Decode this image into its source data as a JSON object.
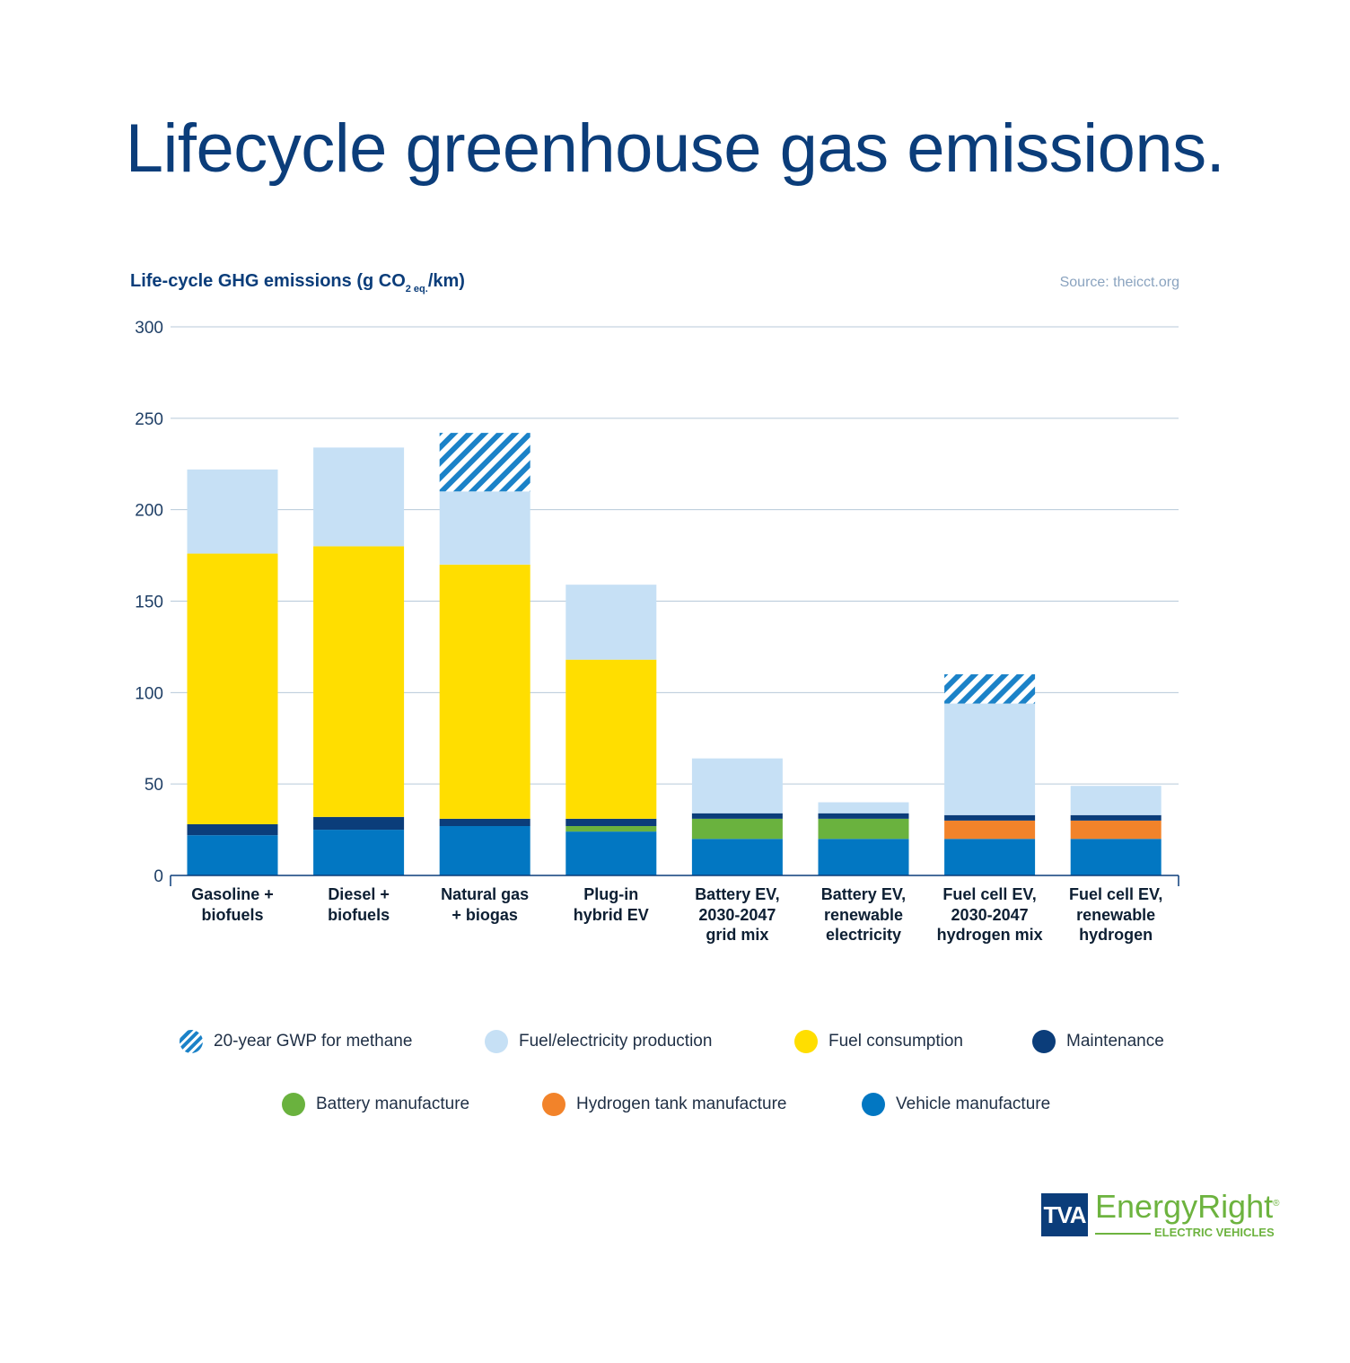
{
  "title": "Lifecycle greenhouse gas emissions.",
  "source": "Source: theicct.org",
  "ylabel": {
    "main": "Life-cycle GHG emissions (g CO",
    "sub": "2 eq.",
    "end": "/km)"
  },
  "colors": {
    "title": "#0b3d7a",
    "gwp_methane": "#1b82c8",
    "fuel_production": "#c6e0f5",
    "fuel_consumption": "#ffde00",
    "maintenance": "#0b3d7a",
    "battery_manufacture": "#6ab23e",
    "hydrogen_tank_manufacture": "#f2832a",
    "vehicle_manufacture": "#0277c2",
    "gridline": "#b7c9d9",
    "axis": "#0b3d7a"
  },
  "legend": [
    {
      "label": "20-year GWP for methane",
      "key": "gwp_methane",
      "pattern": "hatched"
    },
    {
      "label": "Fuel/electricity production",
      "key": "fuel_production"
    },
    {
      "label": "Fuel consumption",
      "key": "fuel_consumption"
    },
    {
      "label": "Maintenance",
      "key": "maintenance"
    },
    {
      "label": "Battery manufacture",
      "key": "battery_manufacture"
    },
    {
      "label": "Hydrogen tank manufacture",
      "key": "hydrogen_tank_manufacture"
    },
    {
      "label": "Vehicle manufacture",
      "key": "vehicle_manufacture"
    }
  ],
  "logo": {
    "tva": "TVA",
    "brand": "EnergyRight",
    "reg": "®",
    "sub": "ELECTRIC VEHICLES"
  },
  "chart_data": {
    "type": "bar",
    "stacked": true,
    "ylim": [
      0,
      300
    ],
    "yticks": [
      0,
      50,
      100,
      150,
      200,
      250,
      300
    ],
    "grid": true,
    "legend_position": "bottom",
    "categories": [
      [
        "Gasoline +",
        "biofuels"
      ],
      [
        "Diesel +",
        "biofuels"
      ],
      [
        "Natural gas",
        "+ biogas"
      ],
      [
        "Plug-in",
        "hybrid EV"
      ],
      [
        "Battery EV,",
        "2030-2047",
        "grid mix"
      ],
      [
        "Battery EV,",
        "renewable",
        "electricity"
      ],
      [
        "Fuel cell EV,",
        "2030-2047",
        "hydrogen mix"
      ],
      [
        "Fuel cell EV,",
        "renewable",
        "hydrogen"
      ]
    ],
    "series": [
      {
        "name": "Vehicle manufacture",
        "key": "vehicle_manufacture",
        "values": [
          22,
          25,
          27,
          24,
          20,
          20,
          20,
          20
        ]
      },
      {
        "name": "Battery manufacture",
        "key": "battery_manufacture",
        "values": [
          0,
          0,
          0,
          3,
          11,
          11,
          0,
          0
        ]
      },
      {
        "name": "Hydrogen tank manufacture",
        "key": "hydrogen_tank_manufacture",
        "values": [
          0,
          0,
          0,
          0,
          0,
          0,
          10,
          10
        ]
      },
      {
        "name": "Maintenance",
        "key": "maintenance",
        "values": [
          6,
          7,
          4,
          4,
          3,
          3,
          3,
          3
        ]
      },
      {
        "name": "Fuel consumption",
        "key": "fuel_consumption",
        "values": [
          148,
          148,
          139,
          87,
          0,
          0,
          0,
          0
        ]
      },
      {
        "name": "Fuel/electricity production",
        "key": "fuel_production",
        "values": [
          46,
          54,
          40,
          41,
          30,
          6,
          61,
          16
        ]
      },
      {
        "name": "20-year GWP for methane",
        "key": "gwp_methane",
        "values": [
          0,
          0,
          32,
          0,
          0,
          0,
          16,
          0
        ],
        "pattern": "hatched"
      }
    ]
  }
}
